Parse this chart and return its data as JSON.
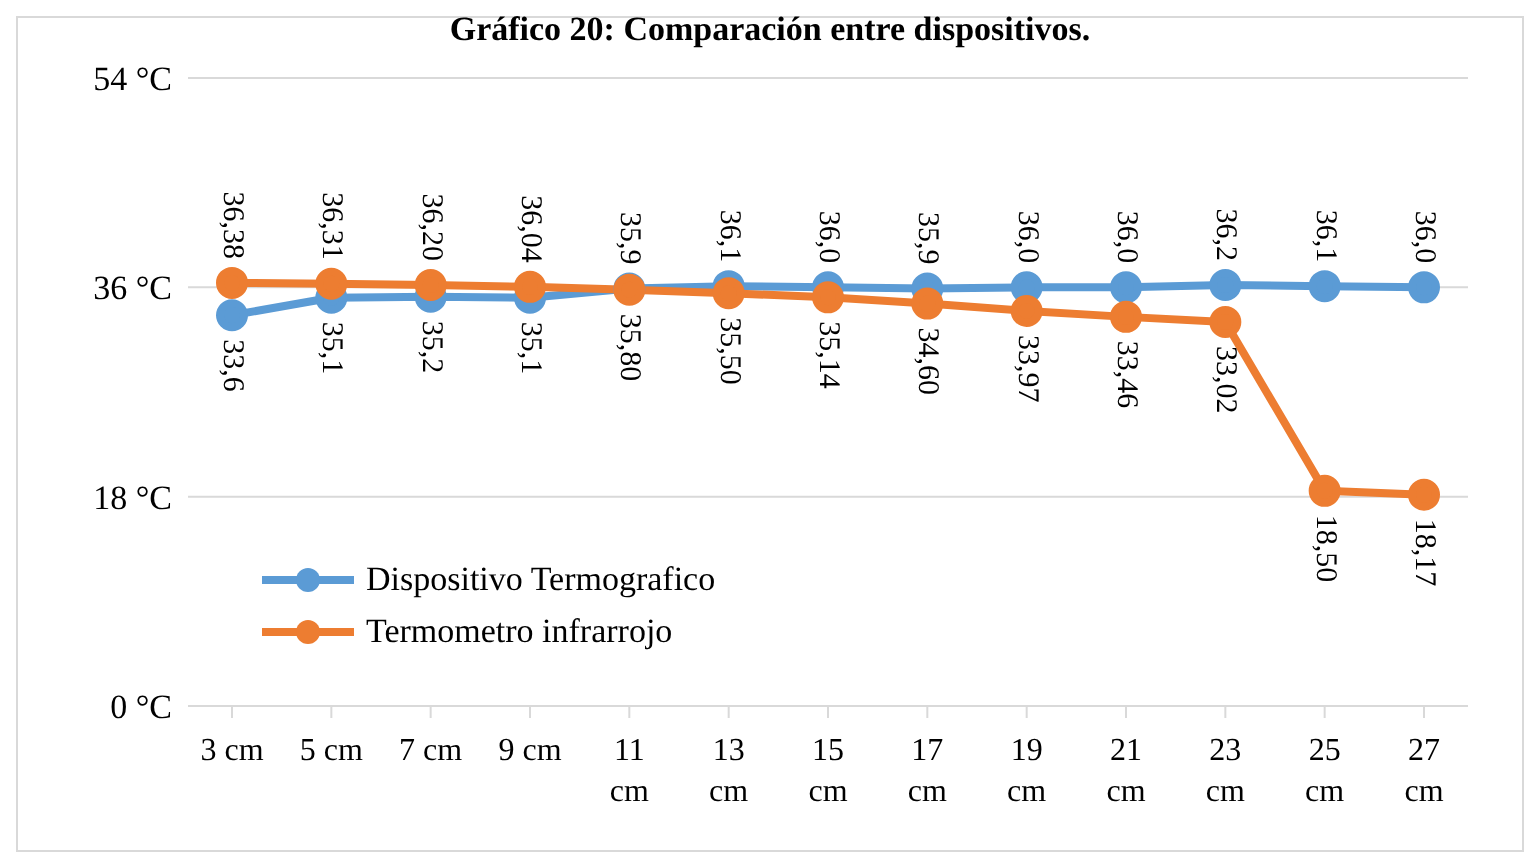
{
  "chart_data": {
    "type": "line",
    "title": "Gráfico 20: Comparación entre dispositivos.",
    "categories": [
      "3 cm",
      "5 cm",
      "7 cm",
      "9 cm",
      "11 cm",
      "13 cm",
      "15 cm",
      "17 cm",
      "19 cm",
      "21 cm",
      "23 cm",
      "25 cm",
      "27 cm"
    ],
    "series": [
      {
        "name": "Dispositivo Termografico",
        "color": "#5b9bd5",
        "values": [
          33.6,
          35.1,
          35.2,
          35.1,
          35.9,
          36.1,
          36.0,
          35.9,
          36.0,
          36.0,
          36.2,
          36.1,
          36.0
        ],
        "value_labels": [
          "33,6",
          "35,1",
          "35,2",
          "35,1",
          "35,9",
          "36,1",
          "36,0",
          "35,9",
          "36,0",
          "36,0",
          "36,2",
          "36,1",
          "36,0"
        ]
      },
      {
        "name": "Termometro infrarrojo",
        "color": "#ed7d31",
        "values": [
          36.38,
          36.31,
          36.2,
          36.04,
          35.8,
          35.5,
          35.14,
          34.6,
          33.97,
          33.46,
          33.02,
          18.5,
          18.17
        ],
        "value_labels": [
          "36,38",
          "36,31",
          "36,20",
          "36,04",
          "35,80",
          "35,50",
          "35,14",
          "34,60",
          "33,97",
          "33,46",
          "33,02",
          "18,50",
          "18,17"
        ]
      }
    ],
    "ylim": [
      0,
      54
    ],
    "yticks": [
      {
        "value": 0,
        "label": "0 °C"
      },
      {
        "value": 18,
        "label": "18 °C"
      },
      {
        "value": 36,
        "label": "36 °C"
      },
      {
        "value": 54,
        "label": "54 °C"
      }
    ],
    "grid": "y",
    "legend": "bottom left",
    "marker": "circle",
    "line_style": "solid"
  }
}
